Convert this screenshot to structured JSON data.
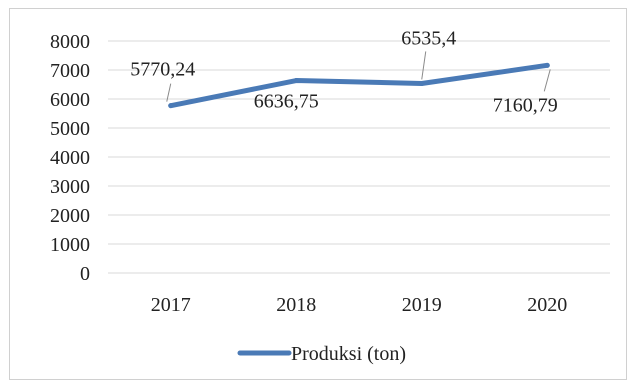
{
  "chart_data": {
    "type": "line",
    "categories": [
      "2017",
      "2018",
      "2019",
      "2020"
    ],
    "series": [
      {
        "name": "Produksi (ton)",
        "values": [
          5770.24,
          6636.75,
          6535.4,
          7160.79
        ]
      }
    ],
    "data_labels": [
      "5770,24",
      "6636,75",
      "6535,4",
      "7160,79"
    ],
    "ylim": [
      0,
      8000
    ],
    "yticks": [
      0,
      1000,
      2000,
      3000,
      4000,
      5000,
      6000,
      7000,
      8000
    ],
    "grid": true,
    "legend_position": "bottom",
    "line_color": "#4a7ab6",
    "grid_color": "#d9d9d9"
  }
}
